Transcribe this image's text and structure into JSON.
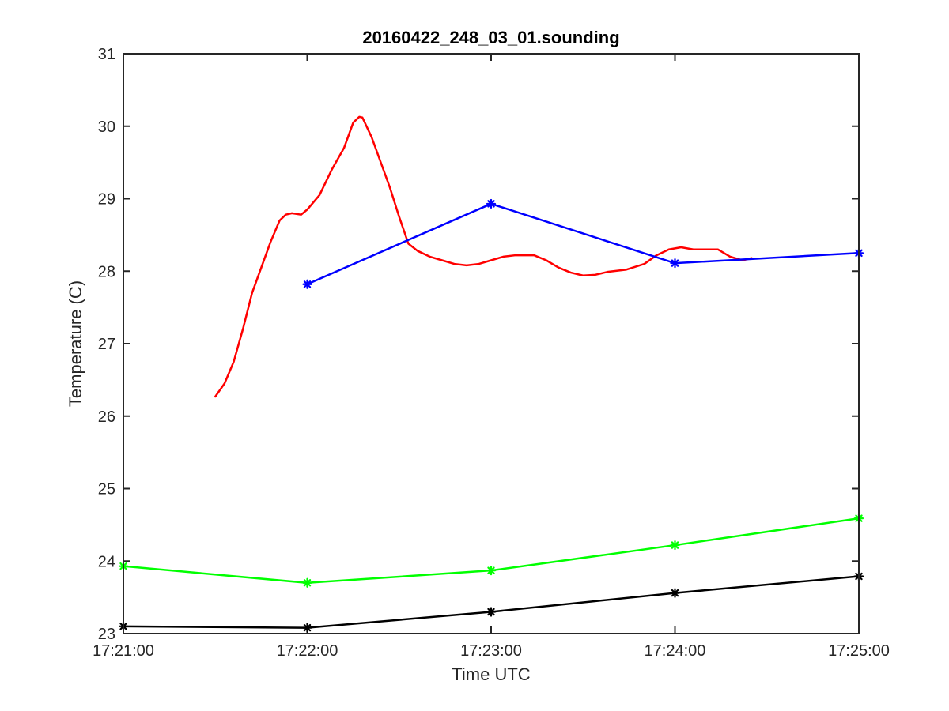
{
  "chart_data": {
    "type": "line",
    "title": "20160422_248_03_01.sounding",
    "xlabel": "Time UTC",
    "ylabel": "Temperature (C)",
    "xlim": [
      "17:21:00",
      "17:25:00"
    ],
    "ylim": [
      23,
      31
    ],
    "x_ticks": [
      "17:21:00",
      "17:22:00",
      "17:23:00",
      "17:24:00",
      "17:25:00"
    ],
    "y_ticks": [
      "23",
      "24",
      "25",
      "26",
      "27",
      "28",
      "29",
      "30",
      "31"
    ],
    "grid": false,
    "legend": "none",
    "series": [
      {
        "color": "#ff0000",
        "marker": "none",
        "points": [
          [
            "17:21:30",
            26.27
          ],
          [
            "17:21:33",
            26.45
          ],
          [
            "17:21:36",
            26.75
          ],
          [
            "17:21:39",
            27.2
          ],
          [
            "17:21:42",
            27.7
          ],
          [
            "17:21:45",
            28.05
          ],
          [
            "17:21:48",
            28.4
          ],
          [
            "17:21:51",
            28.7
          ],
          [
            "17:21:53",
            28.78
          ],
          [
            "17:21:55",
            28.8
          ],
          [
            "17:21:58",
            28.78
          ],
          [
            "17:22:00",
            28.85
          ],
          [
            "17:22:04",
            29.05
          ],
          [
            "17:22:08",
            29.4
          ],
          [
            "17:22:12",
            29.7
          ],
          [
            "17:22:15",
            30.05
          ],
          [
            "17:22:17",
            30.13
          ],
          [
            "17:22:18",
            30.12
          ],
          [
            "17:22:21",
            29.85
          ],
          [
            "17:22:24",
            29.5
          ],
          [
            "17:22:27",
            29.15
          ],
          [
            "17:22:30",
            28.75
          ],
          [
            "17:22:33",
            28.38
          ],
          [
            "17:22:36",
            28.28
          ],
          [
            "17:22:40",
            28.2
          ],
          [
            "17:22:44",
            28.15
          ],
          [
            "17:22:48",
            28.1
          ],
          [
            "17:22:52",
            28.08
          ],
          [
            "17:22:56",
            28.1
          ],
          [
            "17:23:00",
            28.15
          ],
          [
            "17:23:04",
            28.2
          ],
          [
            "17:23:08",
            28.22
          ],
          [
            "17:23:14",
            28.22
          ],
          [
            "17:23:18",
            28.15
          ],
          [
            "17:23:22",
            28.05
          ],
          [
            "17:23:26",
            27.98
          ],
          [
            "17:23:30",
            27.94
          ],
          [
            "17:23:34",
            27.95
          ],
          [
            "17:23:38",
            27.99
          ],
          [
            "17:23:44",
            28.02
          ],
          [
            "17:23:50",
            28.1
          ],
          [
            "17:23:54",
            28.22
          ],
          [
            "17:23:58",
            28.3
          ],
          [
            "17:24:02",
            28.33
          ],
          [
            "17:24:06",
            28.3
          ],
          [
            "17:24:10",
            28.3
          ],
          [
            "17:24:14",
            28.3
          ],
          [
            "17:24:18",
            28.2
          ],
          [
            "17:24:22",
            28.15
          ],
          [
            "17:24:25",
            28.18
          ]
        ]
      },
      {
        "color": "#0000ff",
        "marker": "*",
        "points": [
          [
            "17:22:00",
            27.82
          ],
          [
            "17:23:00",
            28.93
          ],
          [
            "17:24:00",
            28.11
          ],
          [
            "17:25:00",
            28.25
          ]
        ]
      },
      {
        "color": "#00ff00",
        "marker": "*",
        "points": [
          [
            "17:21:00",
            23.93
          ],
          [
            "17:22:00",
            23.7
          ],
          [
            "17:23:00",
            23.87
          ],
          [
            "17:24:00",
            24.22
          ],
          [
            "17:25:00",
            24.59
          ]
        ]
      },
      {
        "color": "#000000",
        "marker": "*",
        "points": [
          [
            "17:21:00",
            23.1
          ],
          [
            "17:22:00",
            23.08
          ],
          [
            "17:23:00",
            23.3
          ],
          [
            "17:24:00",
            23.56
          ],
          [
            "17:25:00",
            23.79
          ]
        ]
      }
    ]
  }
}
